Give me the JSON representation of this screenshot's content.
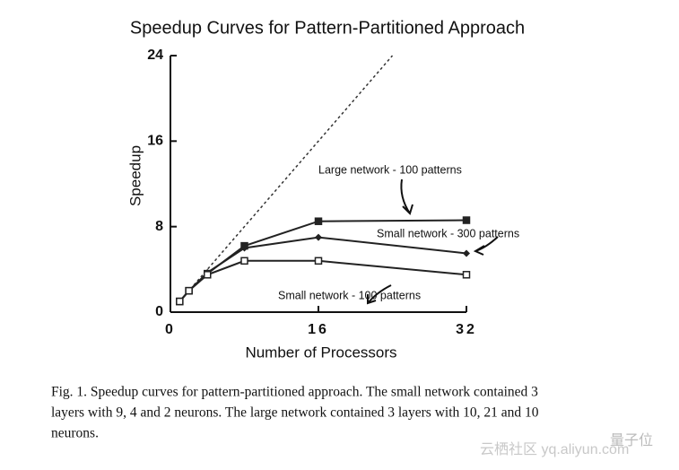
{
  "chart_data": {
    "type": "line",
    "title": "Speedup Curves for Pattern-Partitioned Approach",
    "x_label": "Number of Processors",
    "y_label": "Speedup",
    "xlim": [
      0,
      32
    ],
    "xticks": [
      0,
      16,
      32
    ],
    "ylim": [
      0,
      24
    ],
    "yticks": [
      0,
      8,
      16,
      24
    ],
    "series": [
      {
        "x": [
          1,
          24
        ],
        "values": [
          1,
          24
        ],
        "color": "#333333",
        "dash": true
      },
      {
        "name": "Large network - 100 patterns",
        "color": "#222222",
        "marker": "filled-square",
        "x": [
          1,
          2,
          4,
          8,
          16,
          32
        ],
        "values": [
          1,
          2,
          3.6,
          6.2,
          8.5,
          8.6
        ]
      },
      {
        "name": "Small network - 300 patterns",
        "color": "#222222",
        "marker": "diamond",
        "x": [
          1,
          2,
          4,
          8,
          16,
          32
        ],
        "values": [
          1,
          2,
          3.7,
          6,
          7,
          5.5
        ]
      },
      {
        "name": "Small network - 100 patterns",
        "color": "#222222",
        "marker": "open-square",
        "x": [
          1,
          2,
          4,
          8,
          16,
          32
        ],
        "values": [
          1,
          2,
          3.5,
          4.8,
          4.8,
          3.5
        ]
      }
    ]
  },
  "caption": [
    "Fig. 1. Speedup curves for pattern-partitioned approach.  The small network contained 3",
    "layers with 9, 4 and 2 neurons.  The large network contained 3 layers with 10, 21 and 10",
    "neurons."
  ],
  "watermark": [
    "云栖社区 yq.aliyun.com",
    "量子位"
  ]
}
